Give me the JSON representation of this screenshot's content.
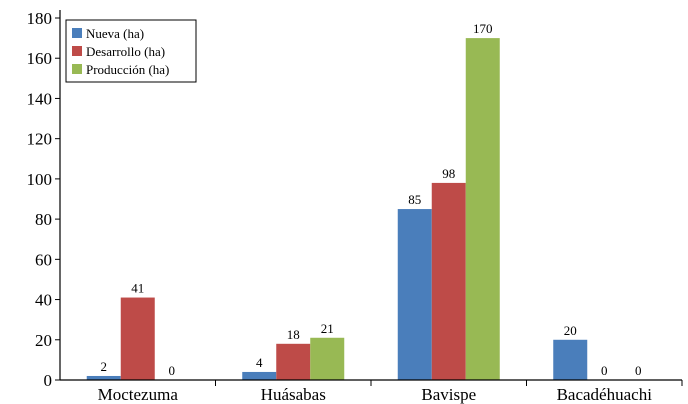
{
  "chart_data": {
    "type": "bar",
    "categories": [
      "Moctezuma",
      "Huásabas",
      "Bavispe",
      "Bacadéhuachi"
    ],
    "series": [
      {
        "name": "Nueva (ha)",
        "color": "#4a7ebb",
        "values": [
          2,
          4,
          85,
          20
        ]
      },
      {
        "name": "Desarrollo (ha)",
        "color": "#be4b48",
        "values": [
          41,
          18,
          98,
          0
        ]
      },
      {
        "name": "Producción (ha)",
        "color": "#98b954",
        "values": [
          0,
          21,
          170,
          0
        ]
      }
    ],
    "data_labels": [
      [
        "2",
        "4",
        "85",
        "20"
      ],
      [
        "41",
        "18",
        "98",
        "0"
      ],
      [
        "0",
        "21",
        "170",
        "0"
      ]
    ],
    "yticks": [
      0,
      20,
      40,
      60,
      80,
      100,
      120,
      140,
      160,
      180
    ],
    "ylim": [
      0,
      180
    ],
    "title": "",
    "xlabel": "",
    "ylabel": "",
    "grid": false,
    "legend_position": "top-left"
  }
}
